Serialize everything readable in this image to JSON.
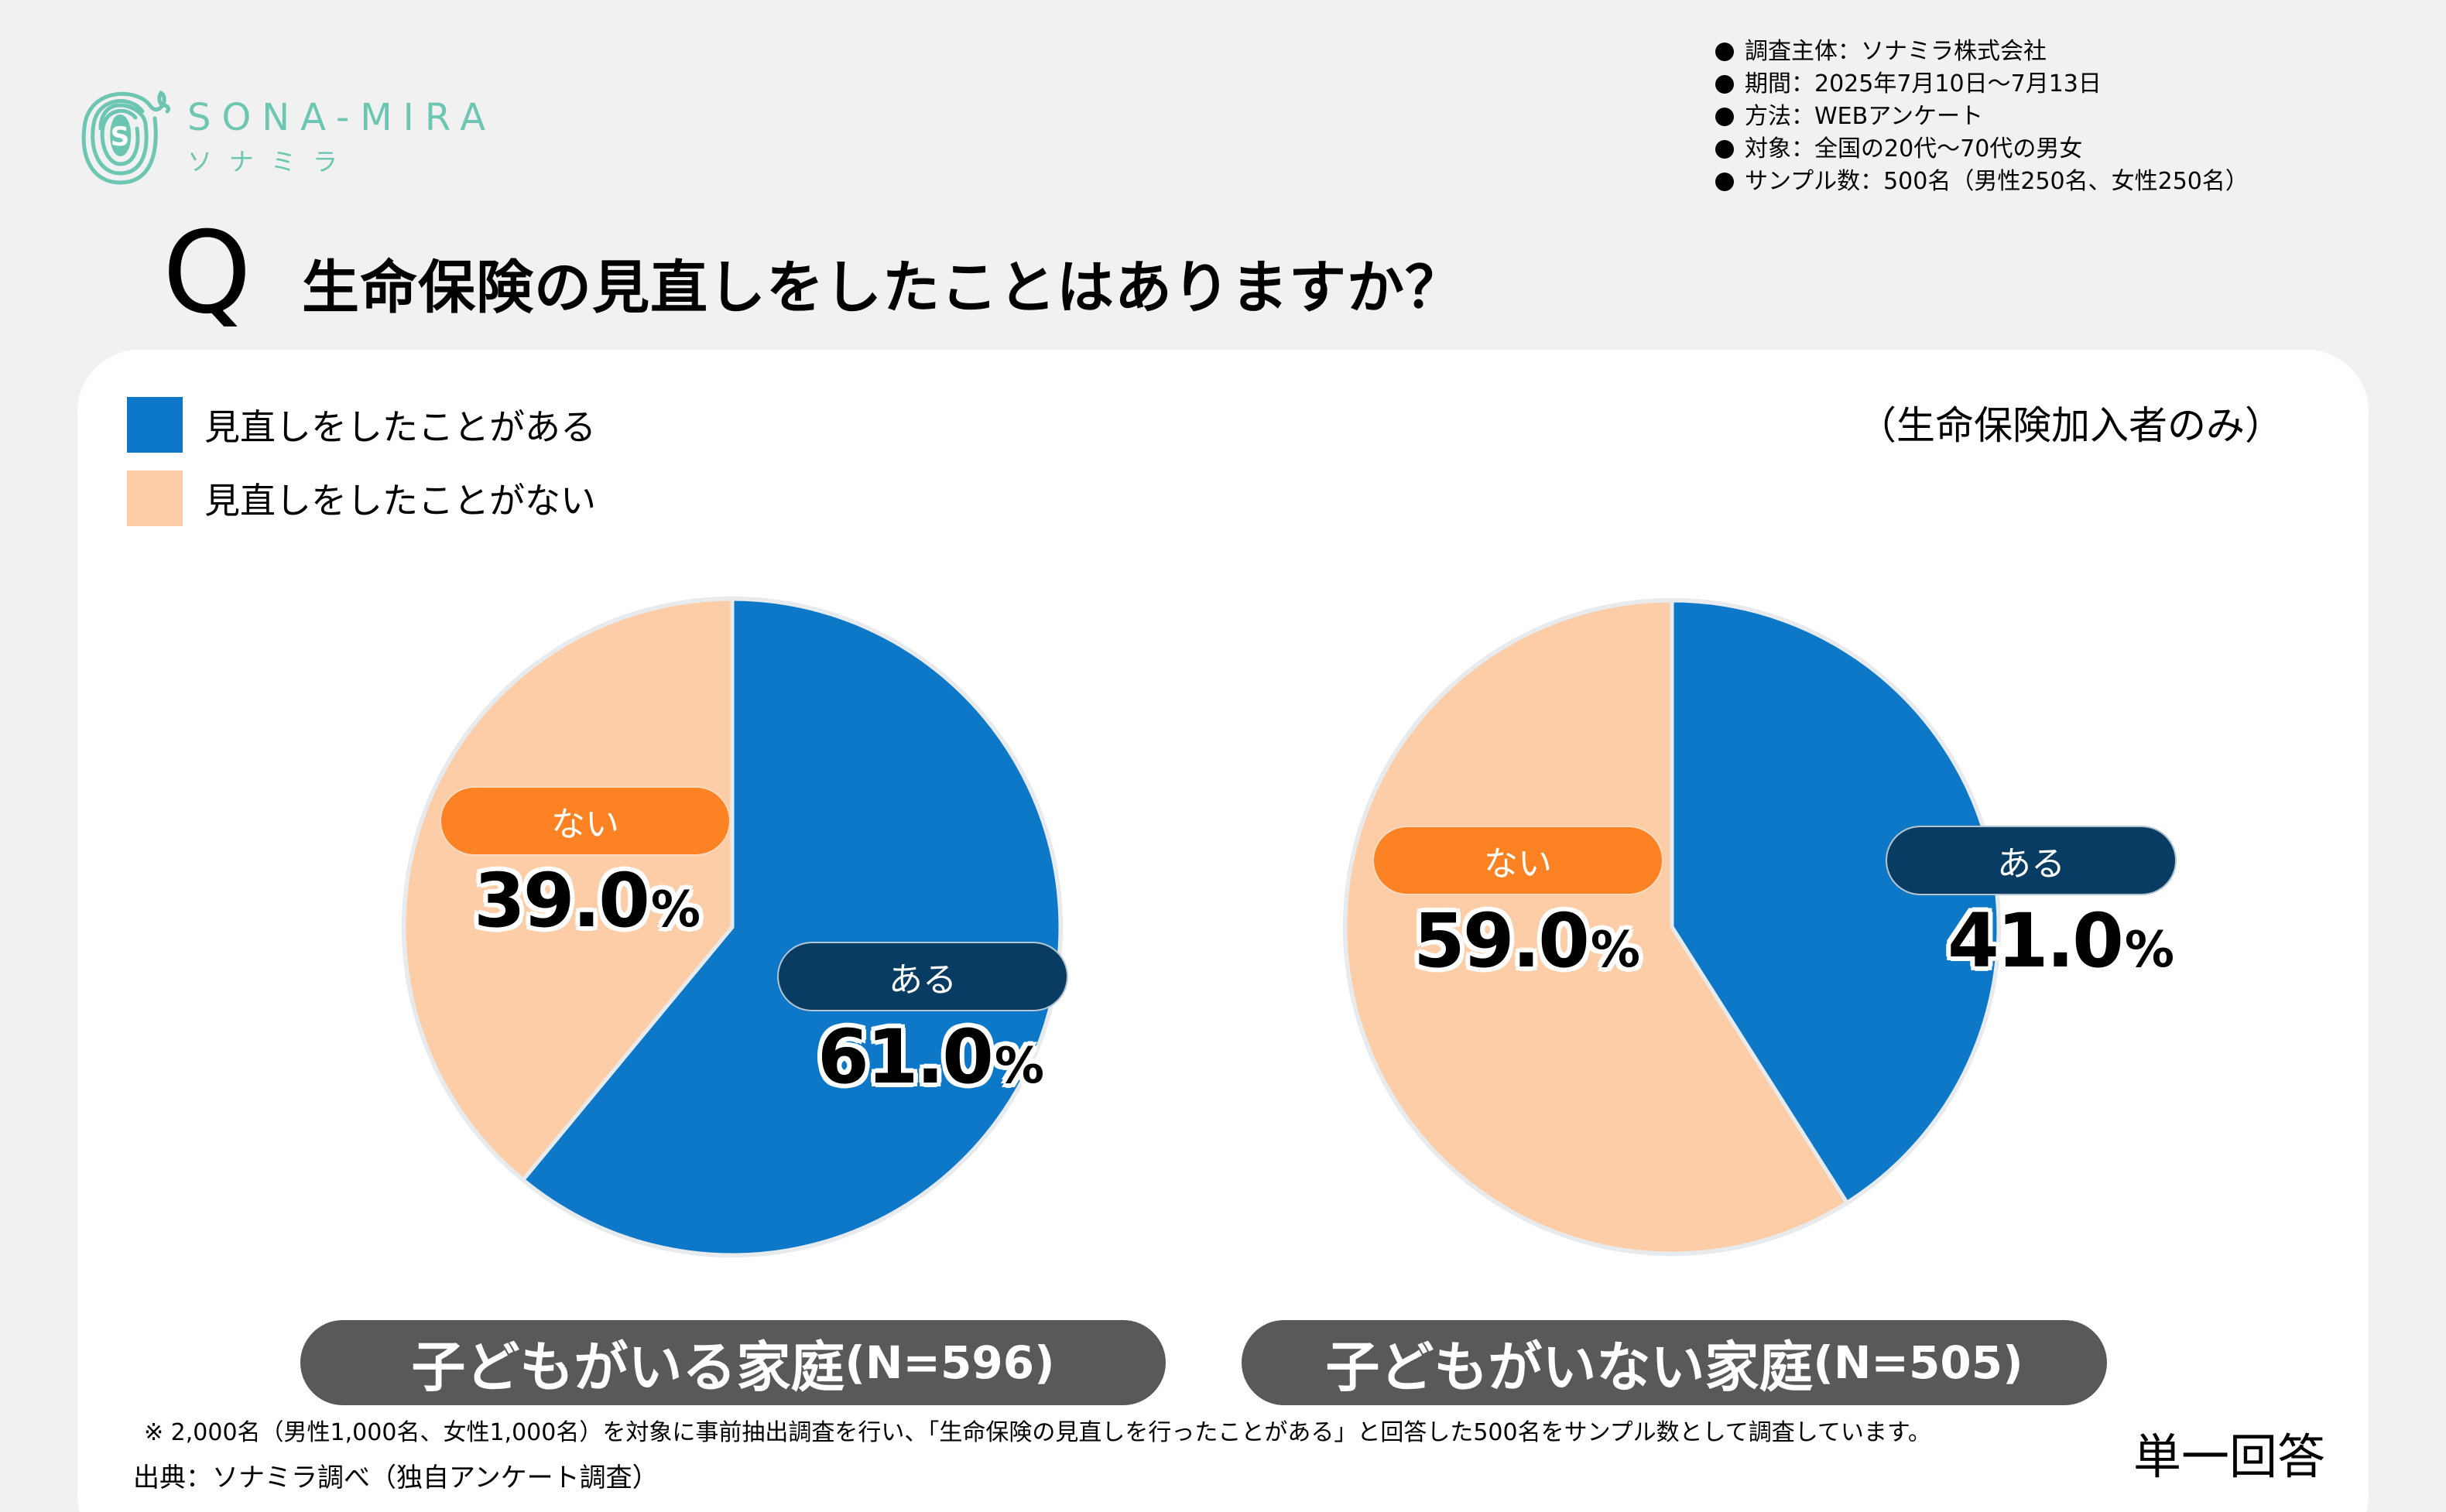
{
  "brand": {
    "name_en": "SONA-MIRA",
    "name_ja": "ソナミラ",
    "color": "#6CC6B2"
  },
  "survey_meta": [
    "調査主体：ソナミラ株式会社",
    "期間：2025年7月10日～7月13日",
    "方法：WEBアンケート",
    "対象：全国の20代～70代の男女",
    "サンプル数：500名（男性250名、女性250名）"
  ],
  "question": {
    "mark": "Q",
    "text": "生命保険の見直しをしたことはありますか？"
  },
  "scope_note": "（生命保険加入者のみ）",
  "legend": [
    {
      "label": "見直しをしたことがある",
      "color": "#0E78C8"
    },
    {
      "label": "見直しをしたことがない",
      "color": "#FCCDA6"
    }
  ],
  "chart_data": {
    "type": "pie",
    "title": "生命保険の見直しをしたことはありますか？",
    "subtitle": "（生命保険加入者のみ）",
    "legend_position": "top-left",
    "categories": [
      "見直しをしたことがある",
      "見直しをしたことがない"
    ],
    "pies": [
      {
        "name": "子どもがいる家庭",
        "n_label": "(N=596)",
        "slices": [
          {
            "key": "yes",
            "short_label": "ある",
            "value": 61.0,
            "display": "61.0",
            "color": "#0E78C8"
          },
          {
            "key": "no",
            "short_label": "ない",
            "value": 39.0,
            "display": "39.0",
            "color": "#FCCDA6"
          }
        ]
      },
      {
        "name": "子どもがいない家庭",
        "n_label": "(N=505)",
        "slices": [
          {
            "key": "yes",
            "short_label": "ある",
            "value": 41.0,
            "display": "41.0",
            "color": "#0E78C8"
          },
          {
            "key": "no",
            "short_label": "ない",
            "value": 59.0,
            "display": "59.0",
            "color": "#FCCDA6"
          }
        ]
      }
    ],
    "unit": "%",
    "pill_colors": {
      "yes": "#083C63",
      "no": "#FC8223"
    }
  },
  "footnote": "※ 2,000名（男性1,000名、女性1,000名）を対象に事前抽出調査を行い、「生命保険の見直しを行ったことがある」と回答した500名をサンプル数として調査しています。",
  "source": "出典：ソナミラ調べ（独自アンケート調査）",
  "answer_type": "単一回答"
}
